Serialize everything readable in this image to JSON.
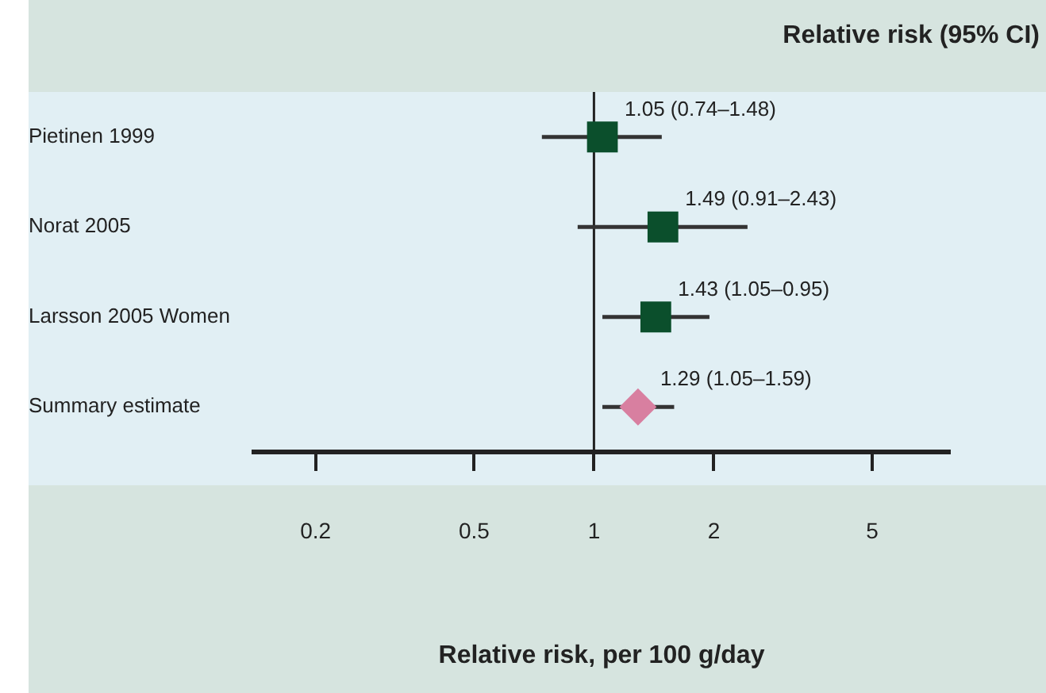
{
  "chart_data": {
    "type": "scatter",
    "orientation": "horizontal",
    "categories": [
      "Pietinen 1999",
      "Norat 2005",
      "Larsson 2005 Women",
      "Summary estimate"
    ],
    "series": [
      {
        "color": "#0b4f2c",
        "marker": "square",
        "values": [
          1.05,
          1.49,
          1.43,
          null
        ],
        "errors": [
          [
            0.74,
            1.48
          ],
          [
            0.91,
            2.43
          ],
          [
            1.05,
            1.95
          ],
          null
        ],
        "value_labels": [
          "1.05 (0.74–1.48)",
          "1.49 (0.91–2.43)",
          "1.43 (1.05–0.95)",
          null
        ]
      },
      {
        "color": "#d87fa0",
        "marker": "diamond",
        "values": [
          null,
          null,
          null,
          1.29
        ],
        "errors": [
          null,
          null,
          null,
          [
            1.05,
            1.59
          ]
        ],
        "value_labels": [
          null,
          null,
          null,
          "1.29 (1.05–1.59)"
        ]
      }
    ],
    "xlabel": "Relative risk, per 100 g/day",
    "log": "x",
    "xlim": [
      0.14,
      7.8
    ],
    "xticks": [
      0.2,
      0.5,
      1,
      2,
      5
    ],
    "ref_lines": [
      {
        "axis": "x",
        "value": 1,
        "color": "#222222"
      }
    ],
    "annotations": [
      "Relative risk (95% CI)"
    ],
    "grid": false,
    "legend": false
  }
}
